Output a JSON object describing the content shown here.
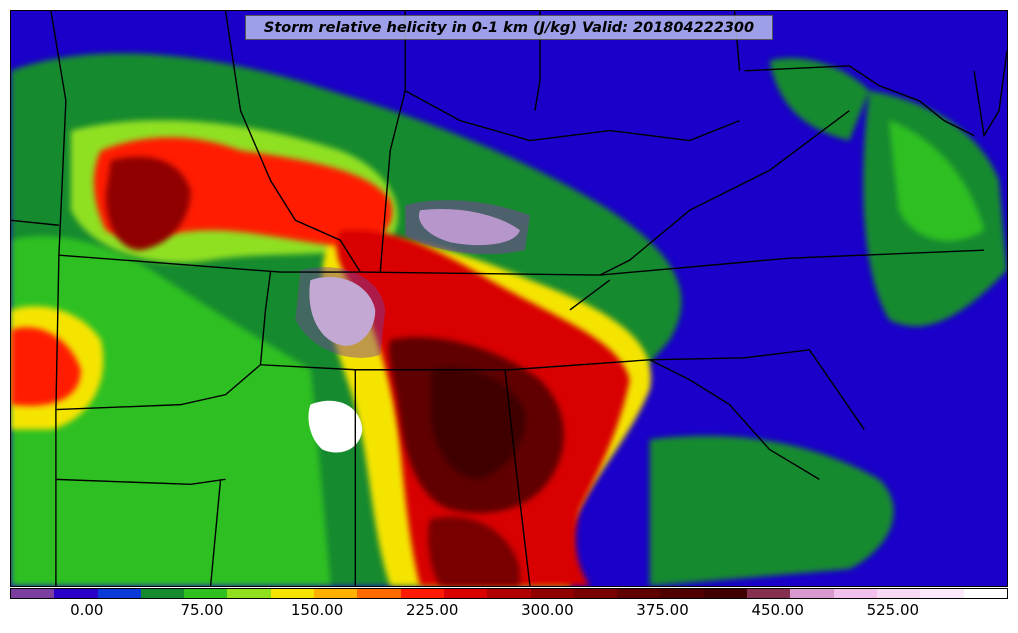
{
  "title": "Storm relative helicity in 0-1 km (J/kg) Valid: 201804222300",
  "colorbar": {
    "colors": [
      "#7b3fa0",
      "#2a00c8",
      "#0b3ad8",
      "#168a2e",
      "#2fc020",
      "#90e020",
      "#f5e400",
      "#ffb000",
      "#ff6a00",
      "#ff1a00",
      "#d80000",
      "#b00000",
      "#900000",
      "#780000",
      "#600000",
      "#500000",
      "#400000",
      "#853050",
      "#d898d0",
      "#f2c0ec",
      "#f7d8f3",
      "#fbeafa",
      "#ffffff"
    ],
    "tick_labels": [
      "0.00",
      "75.00",
      "150.00",
      "225.00",
      "300.00",
      "375.00",
      "450.00",
      "525.00"
    ],
    "tick_values": [
      0,
      75,
      150,
      225,
      300,
      375,
      450,
      525
    ],
    "min": -50,
    "max": 600
  }
}
